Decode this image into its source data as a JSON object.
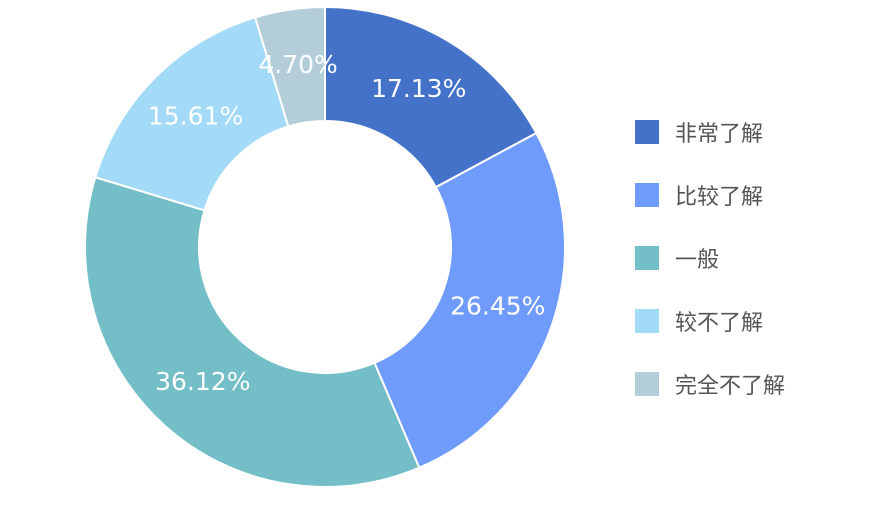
{
  "chart_data": {
    "type": "pie",
    "donut": true,
    "categories": [
      "非常了解",
      "比较了解",
      "一般",
      "较不了解",
      "完全不了解"
    ],
    "values": [
      17.13,
      26.45,
      36.12,
      15.61,
      4.7
    ],
    "value_labels": [
      "17.13%",
      "26.45%",
      "36.12%",
      "15.61%",
      "4.70%"
    ],
    "colors": [
      "#4472C9",
      "#6F9BFD",
      "#73BEC7",
      "#A2DAF7",
      "#B3CED9"
    ],
    "legend_position": "right",
    "start_angle": "top, clockwise"
  }
}
